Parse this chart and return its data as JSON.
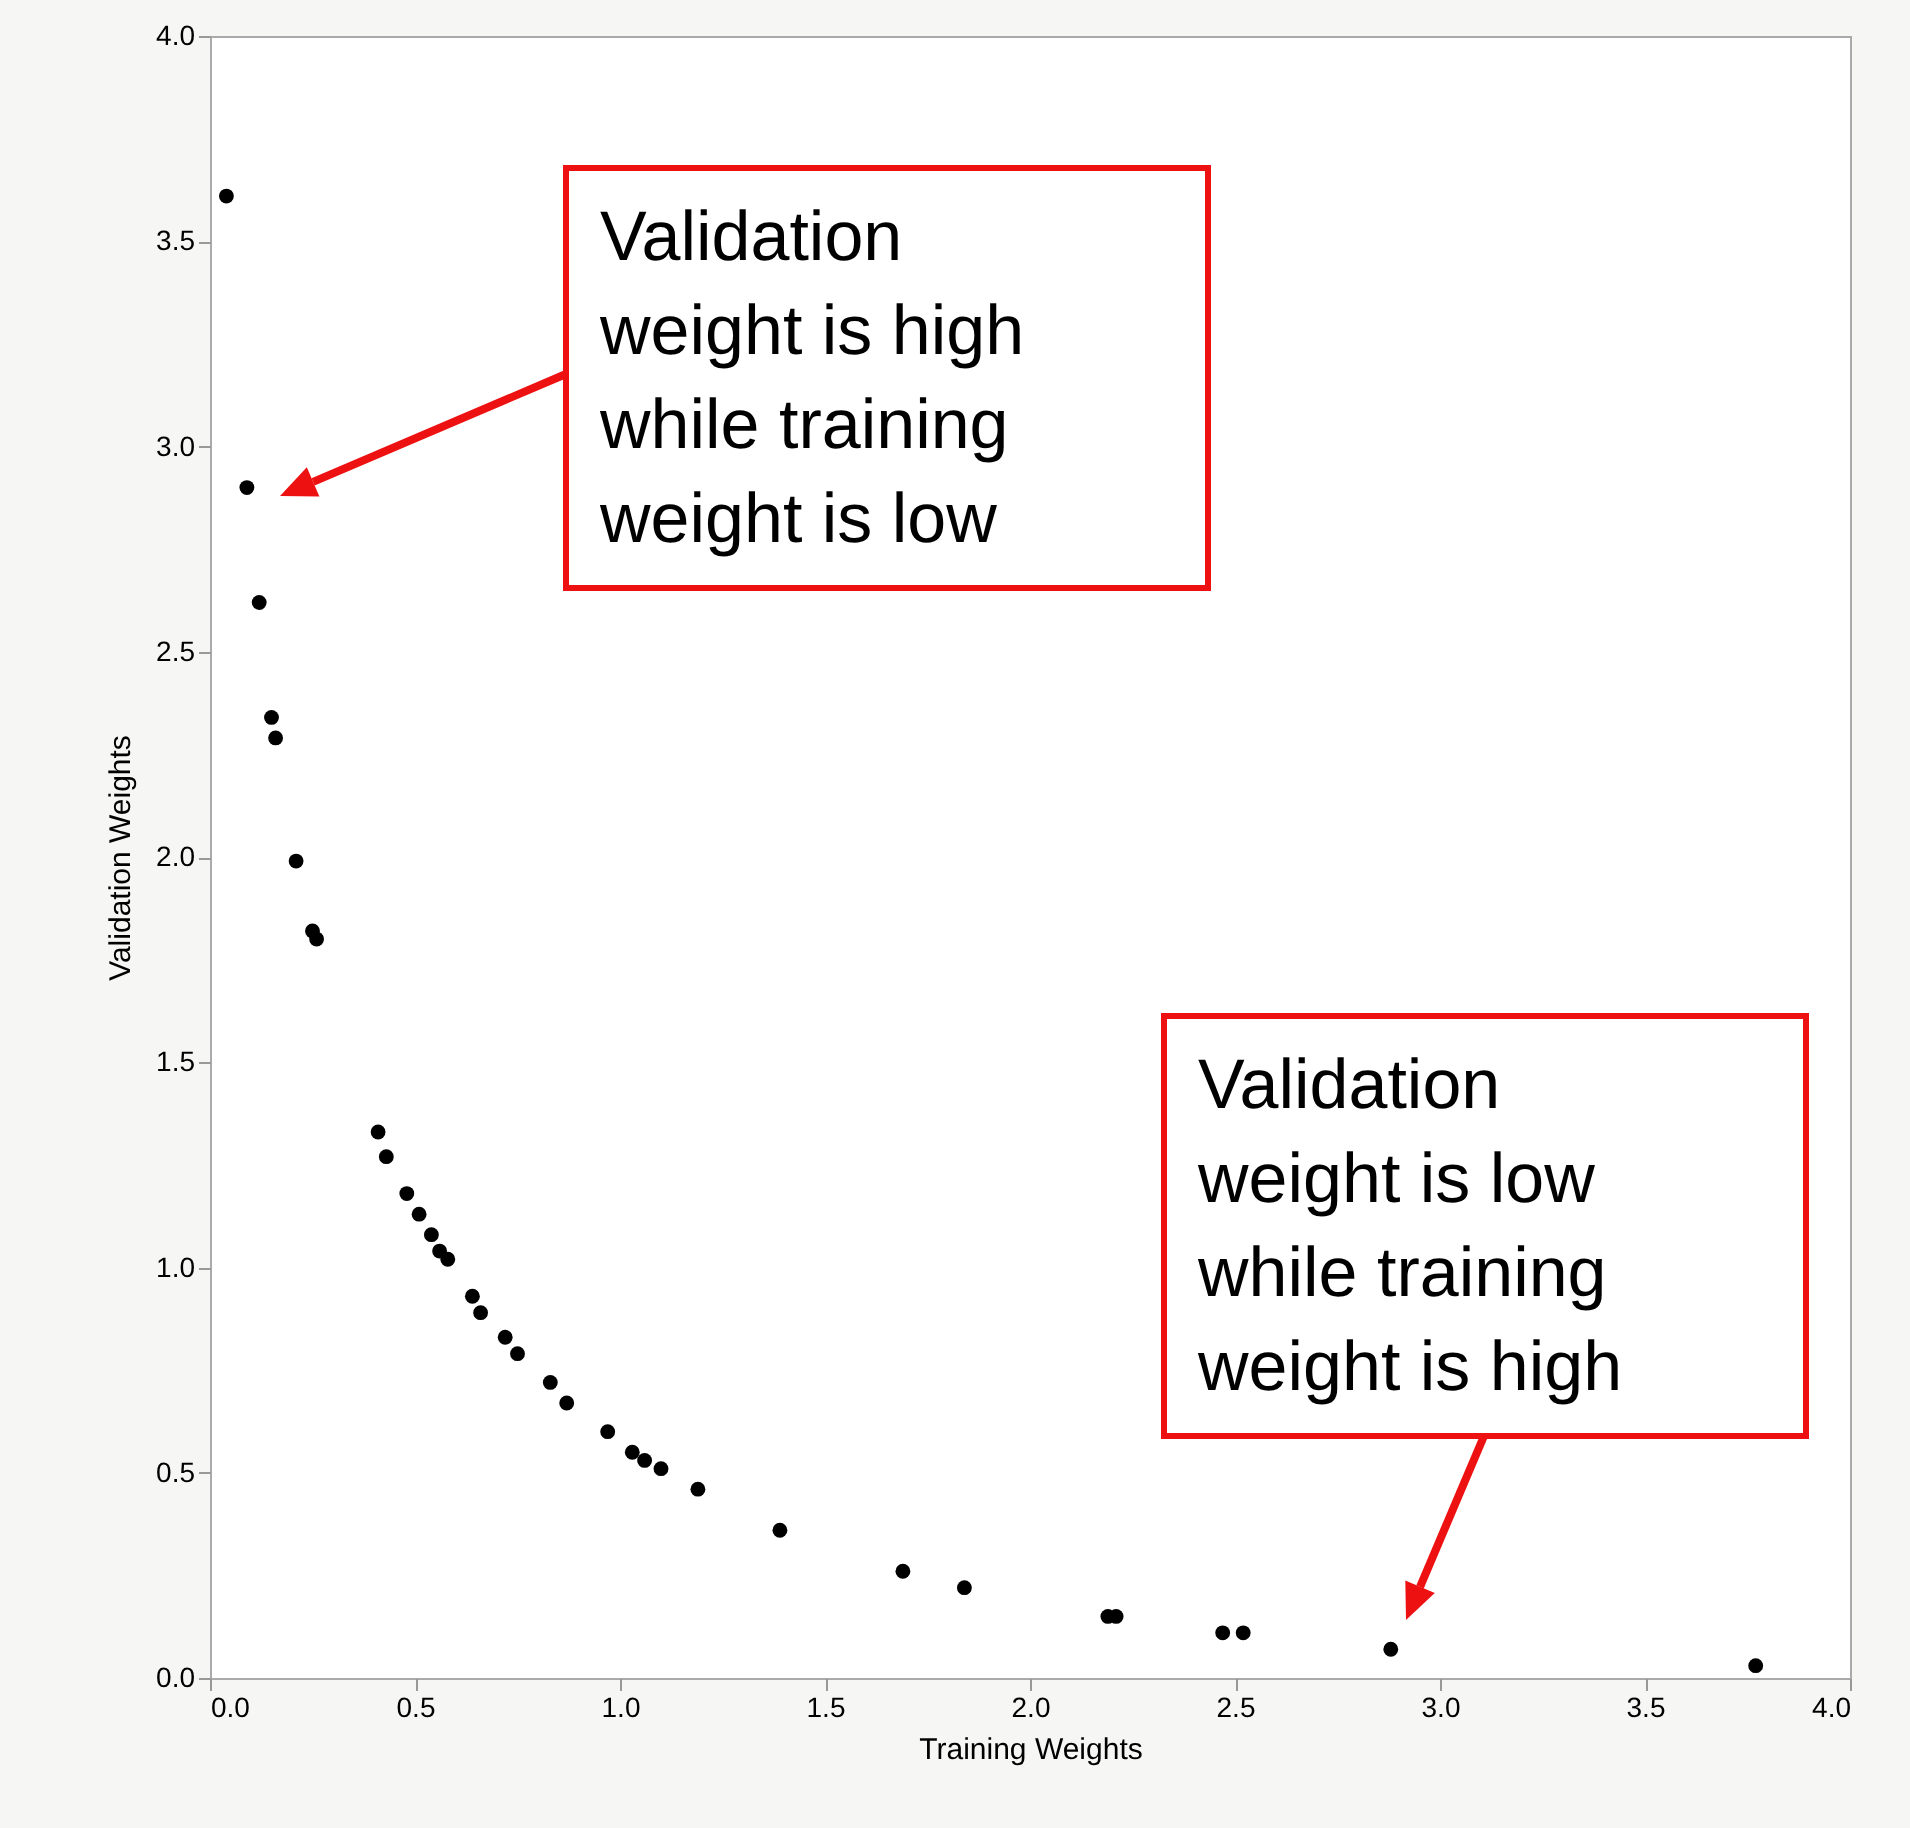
{
  "chart_data": {
    "type": "scatter",
    "xlabel": "Training Weights",
    "ylabel": "Validation Weights",
    "x": [
      0.04,
      0.09,
      0.12,
      0.15,
      0.16,
      0.21,
      0.25,
      0.26,
      0.41,
      0.43,
      0.48,
      0.51,
      0.54,
      0.56,
      0.58,
      0.64,
      0.66,
      0.72,
      0.75,
      0.83,
      0.87,
      0.97,
      1.03,
      1.06,
      1.1,
      1.19,
      1.39,
      1.69,
      1.84,
      2.19,
      2.21,
      2.47,
      2.52,
      2.88,
      3.77
    ],
    "series": [
      {
        "color": "#000000",
        "values": [
          3.61,
          2.9,
          2.62,
          2.34,
          2.29,
          1.99,
          1.82,
          1.8,
          1.33,
          1.27,
          1.18,
          1.13,
          1.08,
          1.04,
          1.02,
          0.93,
          0.89,
          0.83,
          0.79,
          0.72,
          0.67,
          0.6,
          0.55,
          0.53,
          0.51,
          0.46,
          0.36,
          0.26,
          0.22,
          0.15,
          0.15,
          0.11,
          0.11,
          0.07,
          0.03
        ]
      }
    ],
    "marker": "circle",
    "grid": false,
    "xlim": [
      0,
      4
    ],
    "ylim": [
      0,
      4
    ],
    "xticks": [
      {
        "value": 0,
        "label": "0.0"
      },
      {
        "value": 0.5,
        "label": "0.5"
      },
      {
        "value": 1,
        "label": "1.0"
      },
      {
        "value": 1.5,
        "label": "1.5"
      },
      {
        "value": 2,
        "label": "2.0"
      },
      {
        "value": 2.5,
        "label": "2.5"
      },
      {
        "value": 3,
        "label": "3.0"
      },
      {
        "value": 3.5,
        "label": "3.5"
      },
      {
        "value": 4,
        "label": "4.0"
      }
    ],
    "yticks": [
      {
        "value": 0,
        "label": "0.0"
      },
      {
        "value": 0.5,
        "label": "0.5"
      },
      {
        "value": 1,
        "label": "1.0"
      },
      {
        "value": 1.5,
        "label": "1.5"
      },
      {
        "value": 2,
        "label": "2.0"
      },
      {
        "value": 2.5,
        "label": "2.5"
      },
      {
        "value": 3,
        "label": "3.0"
      },
      {
        "value": 3.5,
        "label": "3.5"
      },
      {
        "value": 4,
        "label": "4.0"
      }
    ],
    "annotations": [
      "Validation weight is high while training weight is low",
      "Validation weight is low while training weight is high"
    ]
  }
}
